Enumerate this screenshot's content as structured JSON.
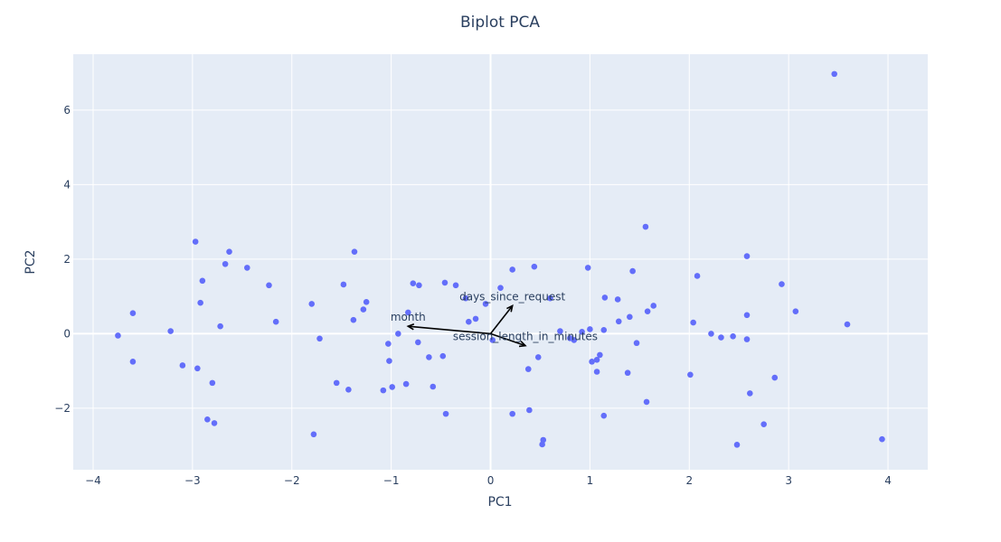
{
  "chart_data": {
    "type": "scatter",
    "title": "Biplot PCA",
    "xlabel": "PC1",
    "ylabel": "PC2",
    "xlim": [
      -4.2,
      4.4
    ],
    "ylim": [
      -3.65,
      7.5
    ],
    "xticks": [
      -4,
      -3,
      -2,
      -1,
      0,
      1,
      2,
      3,
      4
    ],
    "yticks": [
      -2,
      0,
      2,
      4,
      6
    ],
    "xtick_labels": [
      "−4",
      "−3",
      "−2",
      "−1",
      "0",
      "1",
      "2",
      "3",
      "4"
    ],
    "ytick_labels": [
      "−2",
      "0",
      "2",
      "4",
      "6"
    ],
    "grid": true,
    "colors": {
      "plot_background": "#e5ecf6",
      "grid": "#ffffff",
      "points": "#636efa",
      "arrows": "#000000",
      "text": "#2a3f5f"
    },
    "points": [
      {
        "x": -3.75,
        "y": -0.05
      },
      {
        "x": -3.6,
        "y": 0.55
      },
      {
        "x": -3.6,
        "y": -0.75
      },
      {
        "x": -3.22,
        "y": 0.07
      },
      {
        "x": -3.1,
        "y": -0.85
      },
      {
        "x": -2.95,
        "y": -0.93
      },
      {
        "x": -2.97,
        "y": 2.47
      },
      {
        "x": -2.9,
        "y": 1.42
      },
      {
        "x": -2.92,
        "y": 0.83
      },
      {
        "x": -2.85,
        "y": -2.3
      },
      {
        "x": -2.78,
        "y": -2.4
      },
      {
        "x": -2.8,
        "y": -1.32
      },
      {
        "x": -2.72,
        "y": 0.2
      },
      {
        "x": -2.67,
        "y": 1.87
      },
      {
        "x": -2.63,
        "y": 2.2
      },
      {
        "x": -2.45,
        "y": 1.77
      },
      {
        "x": -2.23,
        "y": 1.3
      },
      {
        "x": -2.16,
        "y": 0.32
      },
      {
        "x": -1.8,
        "y": 0.8
      },
      {
        "x": -1.78,
        "y": -2.7
      },
      {
        "x": -1.72,
        "y": -0.13
      },
      {
        "x": -1.55,
        "y": -1.32
      },
      {
        "x": -1.48,
        "y": 1.32
      },
      {
        "x": -1.43,
        "y": -1.5
      },
      {
        "x": -1.37,
        "y": 2.2
      },
      {
        "x": -1.38,
        "y": 0.37
      },
      {
        "x": -1.28,
        "y": 0.65
      },
      {
        "x": -1.25,
        "y": 0.85
      },
      {
        "x": -1.08,
        "y": -1.52
      },
      {
        "x": -1.03,
        "y": -0.27
      },
      {
        "x": -1.02,
        "y": -0.73
      },
      {
        "x": -0.99,
        "y": -1.43
      },
      {
        "x": -0.93,
        "y": 0.0
      },
      {
        "x": -0.85,
        "y": -1.35
      },
      {
        "x": -0.83,
        "y": 0.57
      },
      {
        "x": -0.78,
        "y": 1.35
      },
      {
        "x": -0.72,
        "y": 1.3
      },
      {
        "x": -0.73,
        "y": -0.23
      },
      {
        "x": -0.62,
        "y": -0.63
      },
      {
        "x": -0.58,
        "y": -1.42
      },
      {
        "x": -0.48,
        "y": -0.6
      },
      {
        "x": -0.46,
        "y": 1.37
      },
      {
        "x": -0.45,
        "y": -2.15
      },
      {
        "x": -0.35,
        "y": 1.3
      },
      {
        "x": -0.25,
        "y": 0.95
      },
      {
        "x": -0.22,
        "y": 0.32
      },
      {
        "x": -0.15,
        "y": 0.4
      },
      {
        "x": -0.05,
        "y": 0.8
      },
      {
        "x": 0.02,
        "y": -0.17
      },
      {
        "x": 0.1,
        "y": 1.23
      },
      {
        "x": 0.22,
        "y": 1.72
      },
      {
        "x": 0.22,
        "y": -2.15
      },
      {
        "x": 0.38,
        "y": -0.95
      },
      {
        "x": 0.39,
        "y": -2.05
      },
      {
        "x": 0.44,
        "y": 1.8
      },
      {
        "x": 0.48,
        "y": -0.63
      },
      {
        "x": 0.53,
        "y": -2.85
      },
      {
        "x": 0.52,
        "y": -2.97
      },
      {
        "x": 0.6,
        "y": 0.95
      },
      {
        "x": 0.7,
        "y": 0.07
      },
      {
        "x": 0.8,
        "y": -0.12
      },
      {
        "x": 0.84,
        "y": -0.17
      },
      {
        "x": 0.92,
        "y": 0.05
      },
      {
        "x": 0.98,
        "y": 1.77
      },
      {
        "x": 1.0,
        "y": 0.12
      },
      {
        "x": 1.02,
        "y": -0.75
      },
      {
        "x": 1.07,
        "y": -0.7
      },
      {
        "x": 1.1,
        "y": -0.57
      },
      {
        "x": 1.07,
        "y": -1.02
      },
      {
        "x": 1.15,
        "y": 0.97
      },
      {
        "x": 1.14,
        "y": -2.2
      },
      {
        "x": 1.14,
        "y": 0.1
      },
      {
        "x": 1.28,
        "y": 0.92
      },
      {
        "x": 1.29,
        "y": 0.33
      },
      {
        "x": 1.38,
        "y": -1.05
      },
      {
        "x": 1.4,
        "y": 0.45
      },
      {
        "x": 1.43,
        "y": 1.68
      },
      {
        "x": 1.47,
        "y": -0.25
      },
      {
        "x": 1.56,
        "y": 2.87
      },
      {
        "x": 1.57,
        "y": -1.83
      },
      {
        "x": 1.58,
        "y": 0.6
      },
      {
        "x": 1.64,
        "y": 0.75
      },
      {
        "x": 2.01,
        "y": -1.1
      },
      {
        "x": 2.04,
        "y": 0.3
      },
      {
        "x": 2.08,
        "y": 1.55
      },
      {
        "x": 2.22,
        "y": 0.0
      },
      {
        "x": 2.32,
        "y": -0.1
      },
      {
        "x": 2.44,
        "y": -0.07
      },
      {
        "x": 2.48,
        "y": -2.98
      },
      {
        "x": 2.58,
        "y": 2.08
      },
      {
        "x": 2.58,
        "y": 0.5
      },
      {
        "x": 2.58,
        "y": -0.15
      },
      {
        "x": 2.61,
        "y": -1.6
      },
      {
        "x": 2.75,
        "y": -2.43
      },
      {
        "x": 2.86,
        "y": -1.18
      },
      {
        "x": 2.93,
        "y": 1.33
      },
      {
        "x": 3.07,
        "y": 0.6
      },
      {
        "x": 3.46,
        "y": 6.97
      },
      {
        "x": 3.59,
        "y": 0.25
      },
      {
        "x": 3.94,
        "y": -2.83
      }
    ],
    "loadings": [
      {
        "name": "days_since_request",
        "x": 0.22,
        "y": 0.75
      },
      {
        "name": "month",
        "x": -0.83,
        "y": 0.2
      },
      {
        "name": "session_length_in_minutes",
        "x": 0.35,
        "y": -0.32
      }
    ]
  }
}
